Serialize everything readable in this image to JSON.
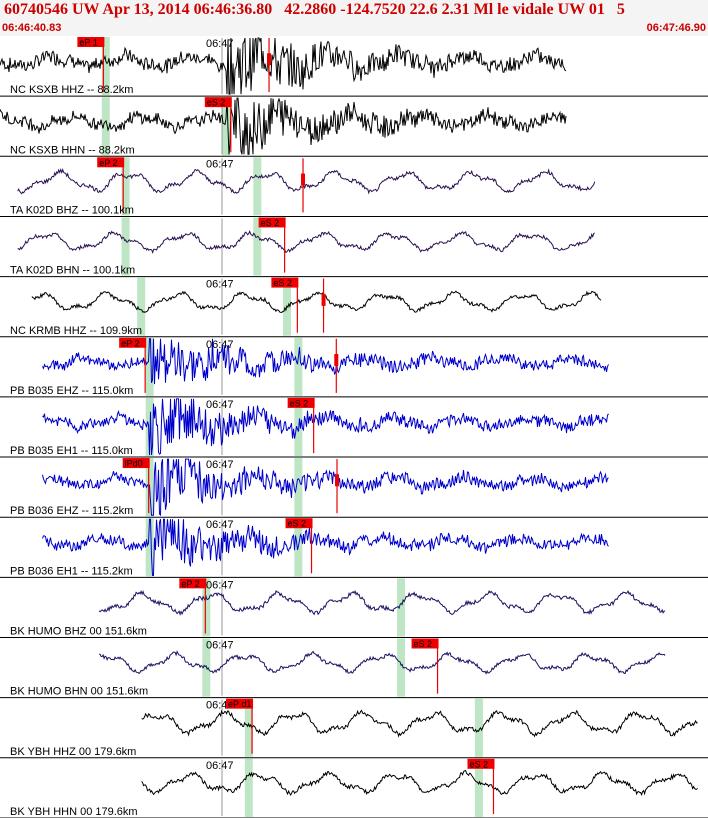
{
  "header": {
    "title": "60740546 UW Apr 13, 2014 06:46:36.80   42.2860 -124.7520 22.6 2.31 Ml le vidale UW 01   5",
    "start_time": "06:46:40.83",
    "end_time": "06:47:46.90"
  },
  "colors": {
    "header_text": "#cc0000",
    "pick_box": "#ee0000",
    "pick_window": "#bfe6c4",
    "trace_bb": "#000000",
    "trace_ta": "#2a1150",
    "trace_pb": "#0000cc",
    "trace_bk": "#1a1060"
  },
  "traces": [
    {
      "label": "NC KSXB HHZ -- 88.2km",
      "minute_label": "06:47",
      "picks": [
        {
          "name": "eP 1",
          "t": 0.146
        },
        {
          "name": "",
          "t": 0.38
        }
      ],
      "windows": [
        0.148
      ],
      "start": 0.0,
      "end": 0.8,
      "amp": 0.55,
      "color": "trace_bb",
      "burst": 0.32
    },
    {
      "label": "NC KSXB HHN -- 88.2km",
      "minute_label": "",
      "picks": [
        {
          "name": "eS 2",
          "t": 0.326
        }
      ],
      "windows": [
        0.148,
        0.318
      ],
      "start": 0.0,
      "end": 0.8,
      "amp": 0.5,
      "color": "trace_bb",
      "burst": 0.32
    },
    {
      "label": "TA K02D BHZ -- 100.1km",
      "minute_label": "06:47",
      "picks": [
        {
          "name": "eP 2",
          "t": 0.174
        },
        {
          "name": "",
          "t": 0.428
        }
      ],
      "windows": [
        0.176,
        0.362
      ],
      "start": 0.025,
      "end": 0.84,
      "amp": 0.55,
      "color": "trace_ta",
      "burst": 0.0
    },
    {
      "label": "TA K02D BHN -- 100.1km",
      "minute_label": "",
      "picks": [
        {
          "name": "eS 2",
          "t": 0.402
        }
      ],
      "windows": [
        0.176,
        0.362
      ],
      "start": 0.025,
      "end": 0.84,
      "amp": 0.5,
      "color": "trace_ta",
      "burst": 0.0
    },
    {
      "label": "NC KRMB HHZ -- 109.9km",
      "minute_label": "06:47",
      "picks": [
        {
          "name": "eS 2",
          "t": 0.42
        },
        {
          "name": "",
          "t": 0.457
        }
      ],
      "windows": [
        0.198,
        0.404
      ],
      "start": 0.045,
      "end": 0.85,
      "amp": 0.5,
      "color": "trace_bb",
      "burst": 0.0
    },
    {
      "label": "PB B035 EHZ -- 115.0km",
      "minute_label": "06:47",
      "picks": [
        {
          "name": "eP 2",
          "t": 0.205
        },
        {
          "name": "",
          "t": 0.475
        }
      ],
      "windows": [
        0.21,
        0.42
      ],
      "start": 0.06,
      "end": 0.86,
      "amp": 0.45,
      "color": "trace_pb",
      "burst": 0.21
    },
    {
      "label": "PB B035 EH1 -- 115.0km",
      "minute_label": "06:47",
      "picks": [
        {
          "name": "eS 2",
          "t": 0.443
        }
      ],
      "windows": [
        0.21,
        0.42
      ],
      "start": 0.06,
      "end": 0.86,
      "amp": 0.45,
      "color": "trace_pb",
      "burst": 0.21
    },
    {
      "label": "PB B036 EHZ -- 115.2km",
      "minute_label": "06:47",
      "picks": [
        {
          "name": "iPd0",
          "t": 0.21
        },
        {
          "name": "",
          "t": 0.476
        }
      ],
      "windows": [
        0.21,
        0.42
      ],
      "start": 0.06,
      "end": 0.86,
      "amp": 0.45,
      "color": "trace_pb",
      "burst": 0.21
    },
    {
      "label": "PB B036 EH1 -- 115.2km",
      "minute_label": "06:47",
      "picks": [
        {
          "name": "eS 2",
          "t": 0.44
        }
      ],
      "windows": [
        0.21,
        0.42
      ],
      "start": 0.06,
      "end": 0.86,
      "amp": 0.45,
      "color": "trace_pb",
      "burst": 0.21
    },
    {
      "label": "BK HUMO BHZ 00 151.6km",
      "minute_label": "06:47",
      "picks": [
        {
          "name": "eP 2",
          "t": 0.29
        }
      ],
      "windows": [
        0.29,
        0.565
      ],
      "start": 0.14,
      "end": 0.94,
      "amp": 0.55,
      "color": "trace_bk",
      "burst": 0.0
    },
    {
      "label": "BK HUMO BHN 00 151.6km",
      "minute_label": "06:47",
      "picks": [
        {
          "name": "eS 2",
          "t": 0.618
        }
      ],
      "windows": [
        0.29,
        0.565
      ],
      "start": 0.14,
      "end": 0.94,
      "amp": 0.5,
      "color": "trace_bk",
      "burst": 0.0
    },
    {
      "label": "BK YBH HHZ 00 179.6km",
      "minute_label": "06:47",
      "picks": [
        {
          "name": "eP d1",
          "t": 0.356
        }
      ],
      "windows": [
        0.35,
        0.675
      ],
      "start": 0.2,
      "end": 1.0,
      "amp": 0.6,
      "color": "trace_bb",
      "burst": 0.0
    },
    {
      "label": "BK YBH HHN 00 179.6km",
      "minute_label": "06:47",
      "picks": [
        {
          "name": "eS 2",
          "t": 0.697
        }
      ],
      "windows": [
        0.35,
        0.675
      ],
      "start": 0.2,
      "end": 1.0,
      "amp": 0.55,
      "color": "trace_bb",
      "burst": 0.0
    }
  ]
}
